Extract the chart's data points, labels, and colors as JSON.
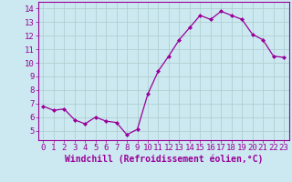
{
  "x": [
    0,
    1,
    2,
    3,
    4,
    5,
    6,
    7,
    8,
    9,
    10,
    11,
    12,
    13,
    14,
    15,
    16,
    17,
    18,
    19,
    20,
    21,
    22,
    23
  ],
  "y": [
    6.8,
    6.5,
    6.6,
    5.8,
    5.5,
    6.0,
    5.7,
    5.6,
    4.7,
    5.1,
    7.7,
    9.4,
    10.5,
    11.7,
    12.6,
    13.5,
    13.2,
    13.8,
    13.5,
    13.2,
    12.1,
    11.7,
    10.5,
    10.4
  ],
  "line_color": "#990099",
  "marker": "D",
  "marker_size": 2,
  "bg_color": "#cce8f0",
  "grid_color": "#aacccc",
  "xlabel": "Windchill (Refroidissement éolien,°C)",
  "xlim": [
    -0.5,
    23.5
  ],
  "ylim": [
    4.3,
    14.5
  ],
  "yticks": [
    5,
    6,
    7,
    8,
    9,
    10,
    11,
    12,
    13,
    14
  ],
  "xticks": [
    0,
    1,
    2,
    3,
    4,
    5,
    6,
    7,
    8,
    9,
    10,
    11,
    12,
    13,
    14,
    15,
    16,
    17,
    18,
    19,
    20,
    21,
    22,
    23
  ],
  "xlabel_color": "#990099",
  "tick_color": "#990099",
  "spine_color": "#990099",
  "tick_fontsize": 6.5,
  "xlabel_fontsize": 7
}
